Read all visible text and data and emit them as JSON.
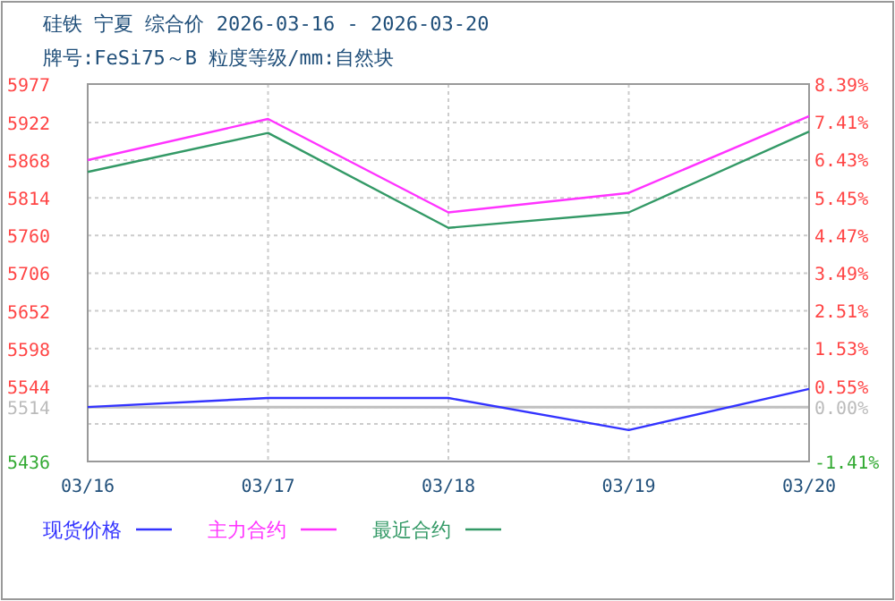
{
  "chart_data": {
    "type": "line",
    "title": "硅铁 宁夏 综合价 2026-03-16 - 2026-03-20",
    "subtitle": "牌号:FeSi75～B 粒度等级/mm:自然块",
    "categories": [
      "03/16",
      "03/17",
      "03/18",
      "03/19",
      "03/20"
    ],
    "series": [
      {
        "name": "现货价格",
        "color": "#3333ff",
        "values": [
          5514,
          5527,
          5527,
          5481,
          5540
        ]
      },
      {
        "name": "主力合约",
        "color": "#ff33ff",
        "values": [
          5868,
          5927,
          5793,
          5821,
          5931
        ]
      },
      {
        "name": "最近合约",
        "color": "#339966",
        "values": [
          5851,
          5907,
          5771,
          5793,
          5909
        ]
      }
    ],
    "ylim": [
      5436,
      5977
    ],
    "yticks": [
      5436,
      {
        "value": 5490,
        "label": null
      },
      5514,
      5544,
      5598,
      5652,
      5706,
      5760,
      5814,
      5868,
      5922,
      5977
    ],
    "y2lim": [
      -1.41,
      8.39
    ],
    "y2ticks": [
      {
        "value": -1.41,
        "label": "-1.41%"
      },
      {
        "value": 0,
        "label": "0.00%"
      },
      {
        "value": 0.55,
        "label": "0.55%"
      },
      {
        "value": 1.53,
        "label": "1.53%"
      },
      {
        "value": 2.51,
        "label": "2.51%"
      },
      {
        "value": 3.49,
        "label": "3.49%"
      },
      {
        "value": 4.47,
        "label": "4.47%"
      },
      {
        "value": 5.45,
        "label": "5.45%"
      },
      {
        "value": 6.43,
        "label": "6.43%"
      },
      {
        "value": 7.41,
        "label": "7.41%"
      },
      {
        "value": 8.39,
        "label": "8.39%"
      }
    ],
    "ref_lines": [
      {
        "axis": "y",
        "value": 5514,
        "color": "#c0c0c0"
      }
    ],
    "grid": true,
    "legend": "bottom",
    "marker": "none",
    "line_style": "solid"
  }
}
